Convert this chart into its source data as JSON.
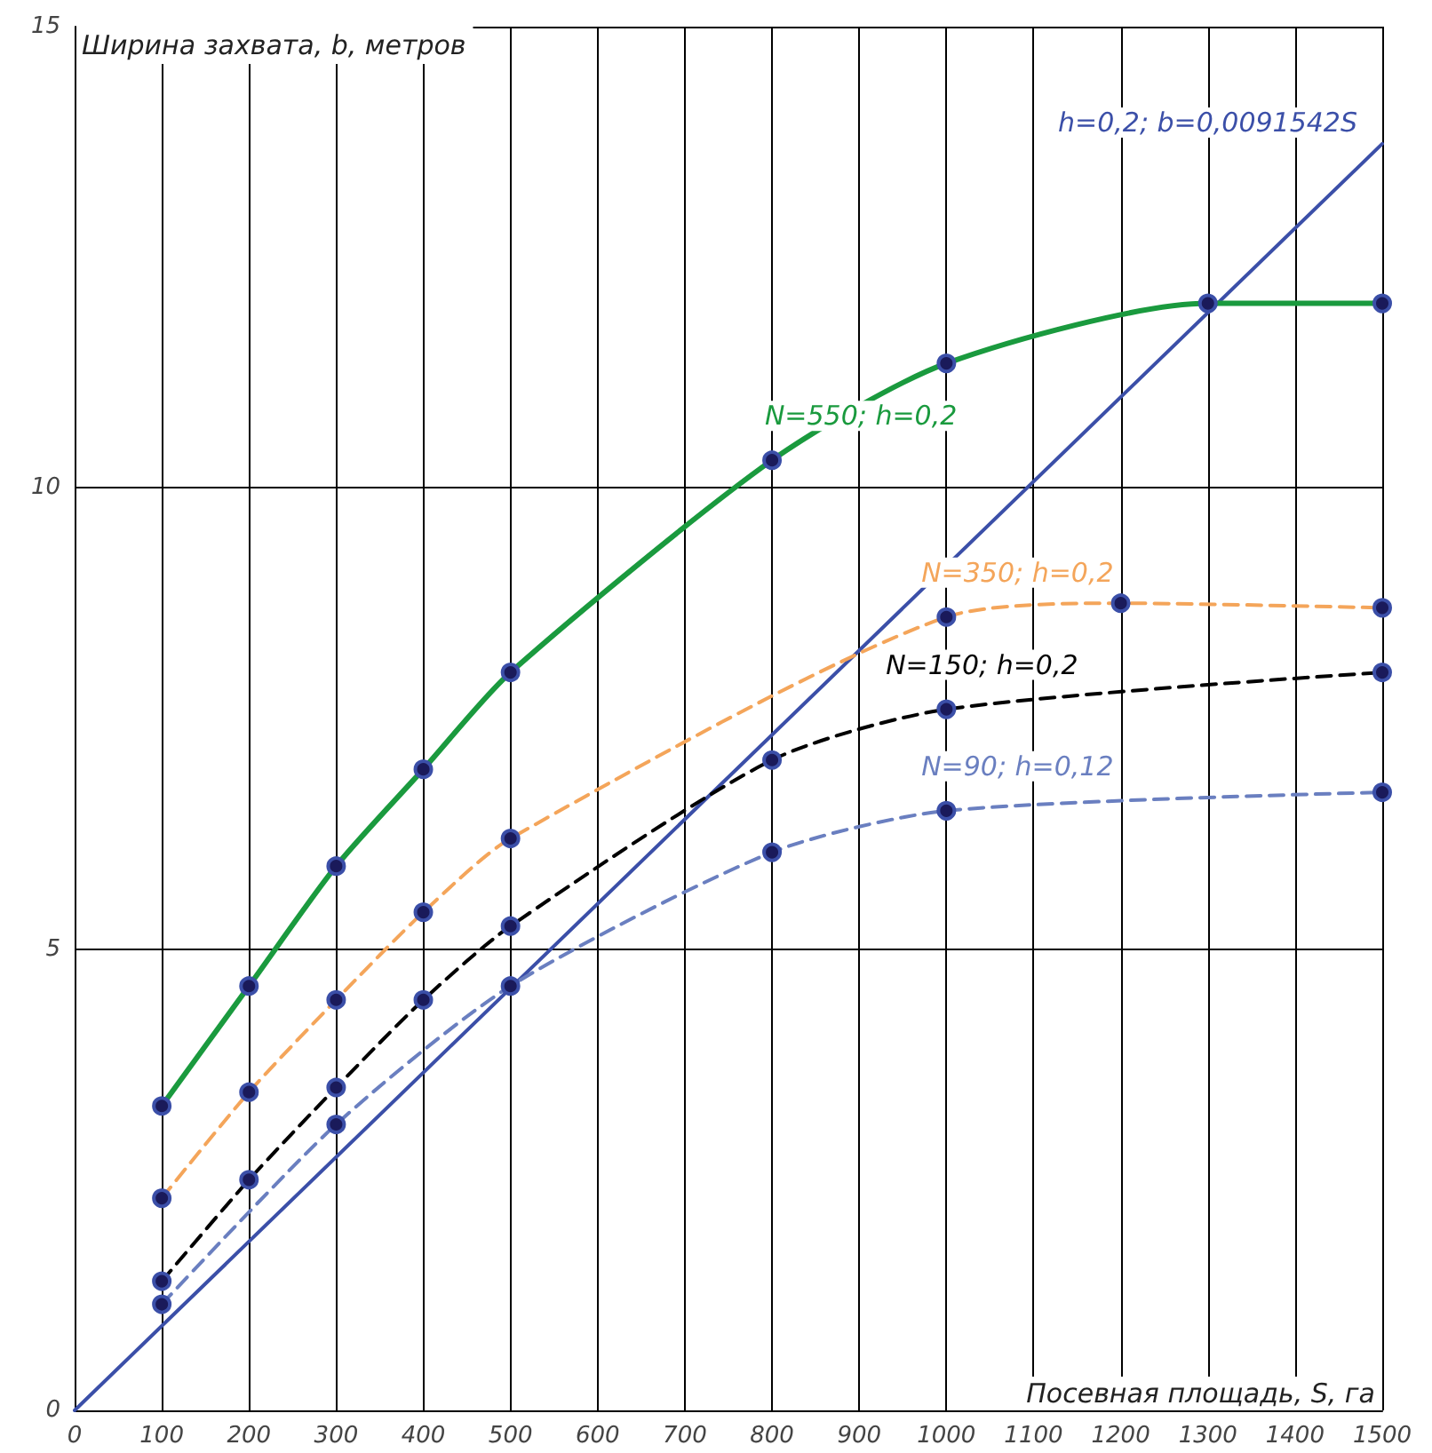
{
  "chart_data": {
    "type": "line",
    "xlabel": "Посевная площадь, S, га",
    "ylabel": "Ширина захвата, b, метров",
    "xlim": [
      0,
      1500
    ],
    "xticks": [
      0,
      100,
      200,
      300,
      400,
      500,
      600,
      700,
      800,
      900,
      1000,
      1100,
      1200,
      1300,
      1400,
      1500
    ],
    "ylim": [
      0,
      15
    ],
    "yticks": [
      0,
      5,
      10,
      15
    ],
    "grid": true,
    "marker": "circle",
    "legend": false,
    "series": [
      {
        "name": "h=0,2; b=0,0091542S",
        "color": "#3b4fa8",
        "line_style": "solid",
        "marker": "none",
        "x": [
          0,
          1500
        ],
        "values": [
          0,
          13.73
        ]
      },
      {
        "name": "N=550; h=0,2",
        "color": "#1a9a3e",
        "line_style": "solid",
        "x": [
          100,
          200,
          300,
          400,
          500,
          800,
          1000,
          1300,
          1500
        ],
        "values": [
          3.3,
          4.6,
          5.9,
          6.95,
          8.0,
          10.3,
          11.35,
          12.0,
          12.0
        ]
      },
      {
        "name": "N=350; h=0,2",
        "color": "#f4a55a",
        "line_style": "dashed",
        "x": [
          100,
          200,
          300,
          400,
          500,
          1000,
          1200,
          1500
        ],
        "values": [
          2.3,
          3.45,
          4.45,
          5.4,
          6.2,
          8.6,
          8.75,
          8.7
        ]
      },
      {
        "name": "N=150; h=0,2",
        "color": "#000000",
        "line_style": "dashed",
        "x": [
          100,
          200,
          300,
          400,
          500,
          800,
          1000,
          1500
        ],
        "values": [
          1.4,
          2.5,
          3.5,
          4.45,
          5.25,
          7.05,
          7.6,
          8.0
        ]
      },
      {
        "name": "N=90; h=0,12",
        "color": "#6a7fc0",
        "line_style": "dashed",
        "x": [
          100,
          300,
          500,
          800,
          1000,
          1500
        ],
        "values": [
          1.15,
          3.1,
          4.6,
          6.05,
          6.5,
          6.7
        ]
      }
    ]
  }
}
